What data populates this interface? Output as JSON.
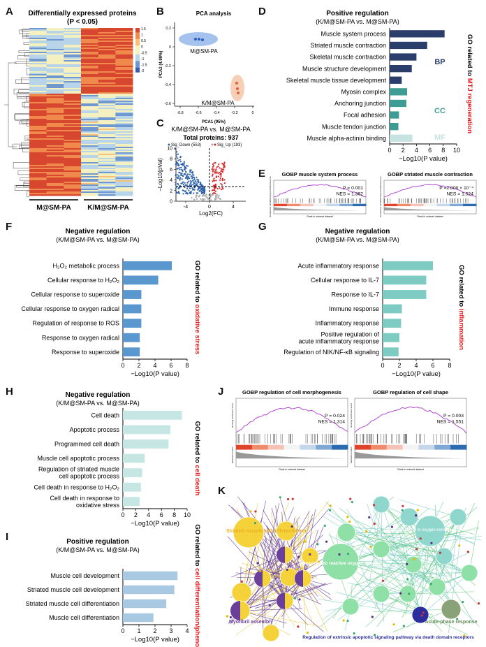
{
  "panel_letters": {
    "a": "A",
    "b": "B",
    "c": "C",
    "d": "D",
    "e": "E",
    "f": "F",
    "g": "G",
    "h": "H",
    "i": "I",
    "j": "J",
    "k": "K"
  },
  "colors": {
    "bp": "#2b3e6b",
    "cc": "#3f9c94",
    "mf": "#c6e3e1",
    "f_bar": "#5a97cf",
    "g_bar": "#7ecbc4",
    "h_bar": "#c6e6e4",
    "i_bar": "#a9c9e2",
    "red_label": "#e21b1b",
    "purple": "#6a3f9a",
    "yellow": "#f5d23a",
    "green": "#8fe0a6",
    "teal": "#8fd6cd",
    "blue_node": "#2b2d9e",
    "olive": "#8aa277"
  },
  "heatmap": {
    "title": "Differentially expressed proteins",
    "subtitle": "(P < 0.05)",
    "group_labels": [
      "M@SM-PA",
      "K/M@SM-PA"
    ],
    "colorbar_ticks": [
      "1.5",
      "1",
      "0.5",
      "0",
      "-0.5",
      "-1",
      "-1.5",
      "-2"
    ]
  },
  "pca": {
    "title": "PCA analysis",
    "xlabel": "PCA1 (95%)",
    "ylabel": "PCA2 (4.99%)",
    "group_labels": [
      "M@SM-PA",
      "K/M@SM-PA"
    ],
    "xticks": [
      "-0.8",
      "-0.6",
      "-0.4",
      "-0.2",
      "0"
    ],
    "yticks": [
      "0.2",
      "0",
      "-0.2",
      "-0.4",
      "-0.6"
    ]
  },
  "volcano": {
    "title": "K/M@SM-PA vs. M@SM-PA",
    "total": "Total proteins: 937",
    "legend_down": "Sig_Down (553)",
    "legend_up": "Sig_Up (193)",
    "xlabel": "Log2(FC)",
    "ylabel": "−Log10(pVal)",
    "xticks": [
      "-4",
      "0",
      "4"
    ],
    "yticks": [
      "0",
      "2",
      "4",
      "6",
      "8",
      "10"
    ]
  },
  "gsea_e": [
    {
      "title": "GOBP muscle system process",
      "p": "P = 0.001",
      "nes": "NES = 1.362"
    },
    {
      "title": "GOBP striated muscle contraction",
      "p": "P =2.000 × 10⁻⁴",
      "nes": "NES = 1.524"
    }
  ],
  "gsea_j": [
    {
      "title": "GOBP regulation of cell morphogenesis",
      "p": "P = 0.024",
      "nes": "NES = 1.314"
    },
    {
      "title": "GOBP regulation of cell shape",
      "p": "P = 0.003",
      "nes": "NES = 1.551"
    }
  ],
  "gsea_axis": {
    "ylabel": "Running enrichment score",
    "ylabel2": "Ranked list metric",
    "xlabel": "Rank in ordered dataset"
  },
  "network": {
    "labels": {
      "striated": "Striated muscle cell differentiation",
      "myofibril": "Myofibril assembly",
      "ros": "Response to reactive oxygen species",
      "cellular_ros": "Cellular response to oxygen-containing compound",
      "acute": "Acute-phase response",
      "extrinsic": "Regulation of extrinsic apoptotic signaling pathway via death domain receptors"
    }
  },
  "chart_data": [
    {
      "type": "bar",
      "id": "D",
      "title": "Positive regulation",
      "subtitle": "(K/M@SM-PA vs. M@SM-PA)",
      "categories": [
        "Muscle system process",
        "Striated muscle contraction",
        "Skeletal muscle contraction",
        "Muscle structure development",
        "Skeletal muscle tissue development",
        "Myosin complex",
        "Anchoring junction",
        "Focal adhesion",
        "Muscle tendon junction",
        "Muscle alpha-actinin binding"
      ],
      "values": [
        8.2,
        5.6,
        4.0,
        3.3,
        1.8,
        2.6,
        2.5,
        1.4,
        1.3,
        3.4
      ],
      "groups": [
        "BP",
        "BP",
        "BP",
        "BP",
        "BP",
        "CC",
        "CC",
        "CC",
        "CC",
        "MF"
      ],
      "group_labels": [
        "BP",
        "CC",
        "MF"
      ],
      "xlabel": "−Log10(P value)",
      "xlim": [
        0,
        10
      ],
      "xticks": [
        0,
        2,
        4,
        6,
        8,
        10
      ],
      "side_label": "GO related to ",
      "side_label_red": "MTJ regeneration"
    },
    {
      "type": "bar",
      "id": "F",
      "title": "Negative regulation",
      "subtitle": "(K/M@SM-PA vs. M@SM-PA)",
      "categories": [
        "H2O2 metabolic process",
        "Cellular response to H2O2",
        "Cellular response to superoxide",
        "Cellular response to oxygen radical",
        "Regulation of response to ROS",
        "Response to oxygen radical",
        "Response to superoxide"
      ],
      "display": [
        "H₂O₂ metabolic process",
        "Cellular response to H₂O₂",
        "Cellular response to superoxide",
        "Cellular response to oxygen radical",
        "Regulation of response to ROS",
        "Response to oxygen radical",
        "Response to superoxide"
      ],
      "values": [
        6.1,
        4.4,
        2.3,
        2.3,
        2.3,
        2.1,
        2.1
      ],
      "xlabel": "−Log10(P value)",
      "xlim": [
        0,
        8
      ],
      "xticks": [
        0,
        2,
        4,
        6,
        8
      ],
      "side_label": "GO related to ",
      "side_label_red": "oxidative stress"
    },
    {
      "type": "bar",
      "id": "G",
      "title": "Negative regulation",
      "subtitle": "(K/M@SM-PA vs. M@SM-PA)",
      "categories": [
        "Acute inflammatory response",
        "Cellular response to IL-7",
        "Response to IL-7",
        "Immune response",
        "Inflammatory response",
        "Positive regulation of acute inflammatory response",
        "Regulation of NIK/NF-κB signaling"
      ],
      "display": [
        "Acute inflammatory response",
        "Cellular response to IL-7",
        "Response to IL-7",
        "Immune response",
        "Inflammatory response",
        "Positive regulation of|acute inflammatory response",
        "Regulation of NIK/NF-κB signaling"
      ],
      "values": [
        6.0,
        5.2,
        5.2,
        2.3,
        2.2,
        2.0,
        1.9
      ],
      "xlabel": "−Log10(P value)",
      "xlim": [
        0,
        8
      ],
      "xticks": [
        0,
        2,
        4,
        6,
        8
      ],
      "side_label": "GO related to ",
      "side_label_red": "inflammation"
    },
    {
      "type": "bar",
      "id": "H",
      "title": "Negative regulation",
      "subtitle": "(K/M@SM-PA vs. M@SM-PA)",
      "categories": [
        "Cell death",
        "Apoptotic process",
        "Programmed cell death",
        "Muscle cell apoptotic process",
        "Regulation of striated muscle cell apoptotic process",
        "Cell death in response to H2O2",
        "Cell death in response to oxidative stress"
      ],
      "display": [
        "Cell death",
        "Apoptotic process",
        "Programmed cell death",
        "Muscle cell apoptotic process",
        "Regulation of striated muscle|cell apoptotic process",
        "Cell death in response to H₂O₂",
        "Cell death in response to|oxidative stress"
      ],
      "values": [
        9.2,
        7.4,
        7.1,
        3.4,
        3.0,
        2.8,
        2.6
      ],
      "xlabel": "−Log10(P value)",
      "xlim": [
        0,
        10
      ],
      "xticks": [
        0,
        2,
        4,
        6,
        8,
        10
      ],
      "side_label": "GO related to ",
      "side_label_red": "cell death"
    },
    {
      "type": "bar",
      "id": "I",
      "title": "Positive regulation",
      "subtitle": "(K/M@SM-PA vs. M@SM-PA)",
      "categories": [
        "Muscle cell development",
        "Striated muscle cell development",
        "Striated muscle cell differentiation",
        "Muscle cell differentiation"
      ],
      "values": [
        3.4,
        3.2,
        2.7,
        1.9
      ],
      "xlabel": "−Log10(P value)",
      "xlim": [
        0,
        4
      ],
      "xticks": [
        0,
        1,
        2,
        3,
        4
      ],
      "side_label": "GO related to ",
      "side_label_red": "cell differentiation/phenotype"
    }
  ]
}
